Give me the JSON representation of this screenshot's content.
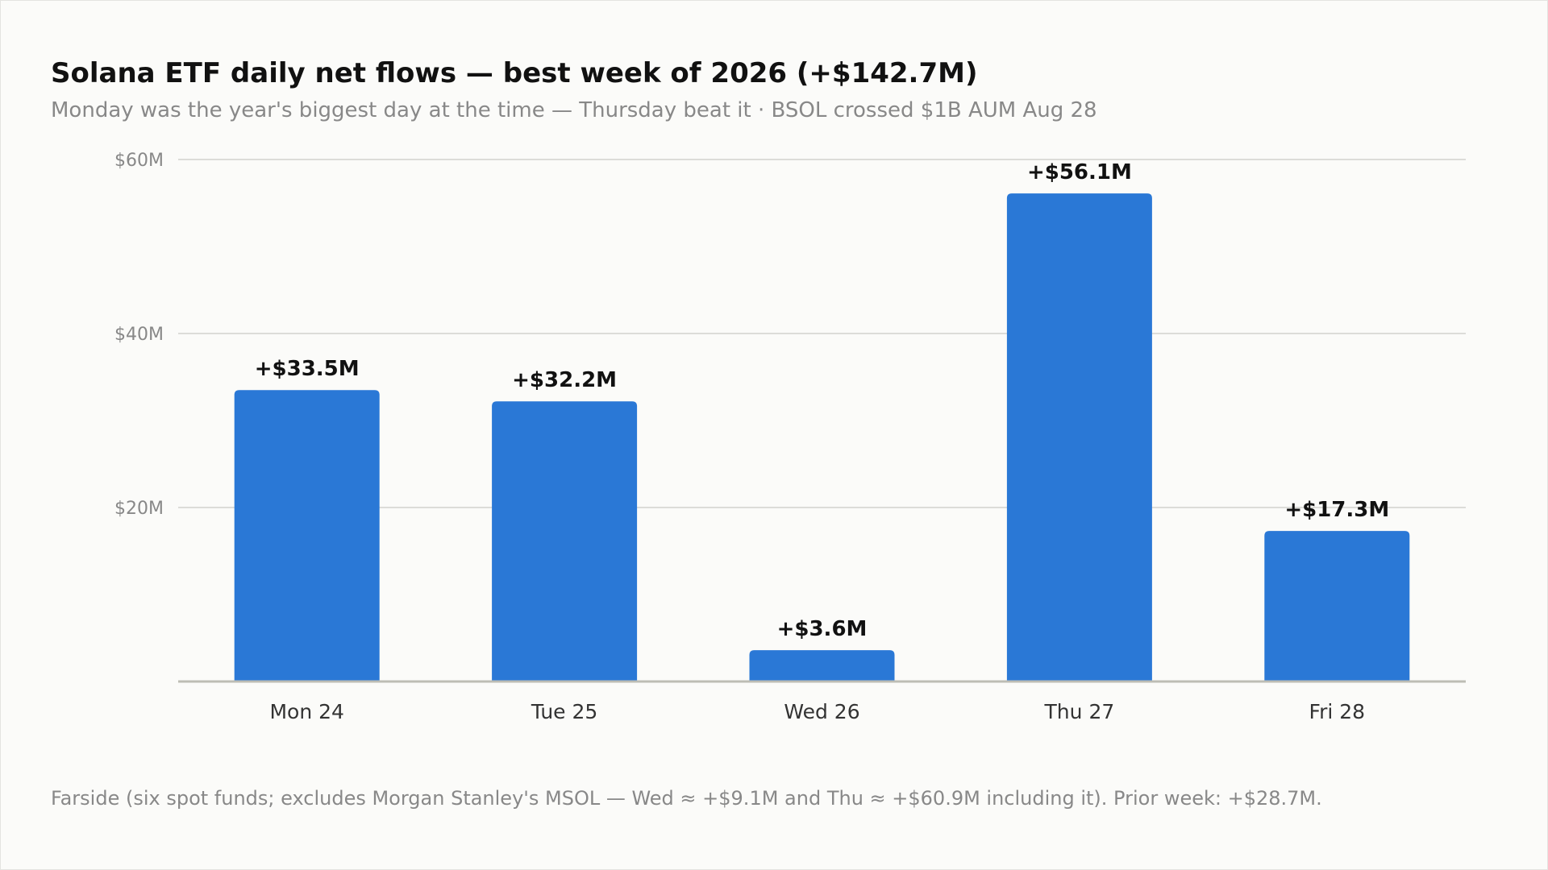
{
  "colors": {
    "bar": "#2a78d6",
    "grid": "#dcdcd8",
    "baseline": "#bdbdb5",
    "tick_text": "#888888",
    "category_text": "#333333",
    "value_label": "#111111",
    "background": "#fbfbf9"
  },
  "chart_data": {
    "type": "bar",
    "title": "Solana ETF daily net flows — best week of 2026 (+$142.7M)",
    "subtitle": "Monday was the year's biggest day at the time — Thursday beat it · BSOL crossed $1B AUM Aug 28",
    "categories": [
      "Mon 24",
      "Tue 25",
      "Wed 26",
      "Thu 27",
      "Fri 28"
    ],
    "values": [
      33.5,
      32.2,
      3.6,
      56.1,
      17.3
    ],
    "value_labels": [
      "+$33.5M",
      "+$32.2M",
      "+$3.6M",
      "+$56.1M",
      "+$17.3M"
    ],
    "ylim": [
      0,
      60
    ],
    "y_ticks": [
      20,
      40,
      60
    ],
    "y_tick_labels": [
      "$20M",
      "$40M",
      "$60M"
    ],
    "xlabel": "",
    "ylabel": "",
    "grid": true,
    "footnote": "Farside (six spot funds; excludes Morgan Stanley's MSOL — Wed ≈ +$9.1M and Thu ≈ +$60.9M including it). Prior week: +$28.7M."
  }
}
